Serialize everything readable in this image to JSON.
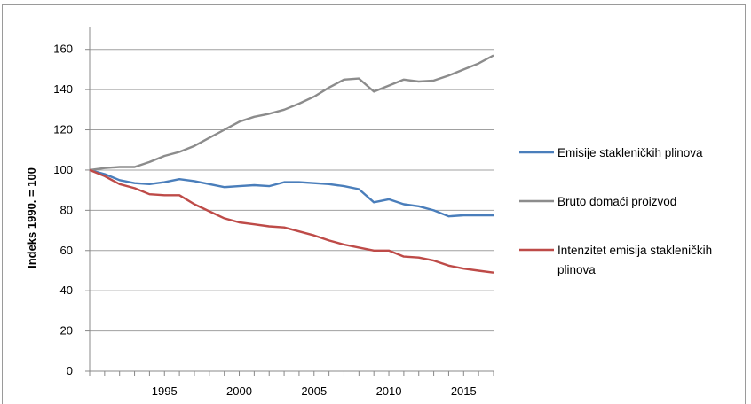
{
  "chart_data": {
    "type": "line",
    "title": "",
    "xlabel": "",
    "ylabel": "Indeks 1990. = 100",
    "ylim": [
      0,
      170
    ],
    "xlim": [
      1990,
      2017
    ],
    "yticks": [
      0,
      20,
      40,
      60,
      80,
      100,
      120,
      140,
      160
    ],
    "xticks": [
      1995,
      2000,
      2005,
      2010,
      2015
    ],
    "grid": "horizontal",
    "legend_position": "right",
    "x": [
      1990,
      1991,
      1992,
      1993,
      1994,
      1995,
      1996,
      1997,
      1998,
      1999,
      2000,
      2001,
      2002,
      2003,
      2004,
      2005,
      2006,
      2007,
      2008,
      2009,
      2010,
      2011,
      2012,
      2013,
      2014,
      2015,
      2016,
      2017
    ],
    "series": [
      {
        "name": "Emisije stakleničkih plinova",
        "color": "#4a7ebb",
        "values": [
          100,
          98,
          95,
          93.5,
          93,
          94,
          95.5,
          94.5,
          93,
          91.5,
          92,
          92.5,
          92,
          94,
          94,
          93.5,
          93,
          92,
          90.5,
          84,
          85.5,
          83,
          82,
          80,
          77,
          77.5,
          77.5,
          77.5
        ]
      },
      {
        "name": "Bruto domaći proizvod",
        "color": "#8c8c8c",
        "values": [
          100,
          101,
          101.5,
          101.5,
          104,
          107,
          109,
          112,
          116,
          120,
          124,
          126.5,
          128,
          130,
          133,
          136.5,
          141,
          145,
          145.5,
          139,
          142,
          145,
          144,
          144.5,
          147,
          150,
          153,
          157
        ]
      },
      {
        "name": "Intenzitet emisija stakleničkih plinova",
        "name_lines": [
          "Intenzitet emisija stakleničkih",
          "plinova"
        ],
        "color": "#be4b48",
        "values": [
          100,
          97,
          93,
          91,
          88,
          87.5,
          87.5,
          83,
          79.5,
          76,
          74,
          73,
          72,
          71.5,
          69.5,
          67.5,
          65,
          63,
          61.5,
          60,
          60,
          57,
          56.5,
          55,
          52.5,
          51,
          50,
          49
        ]
      }
    ]
  }
}
